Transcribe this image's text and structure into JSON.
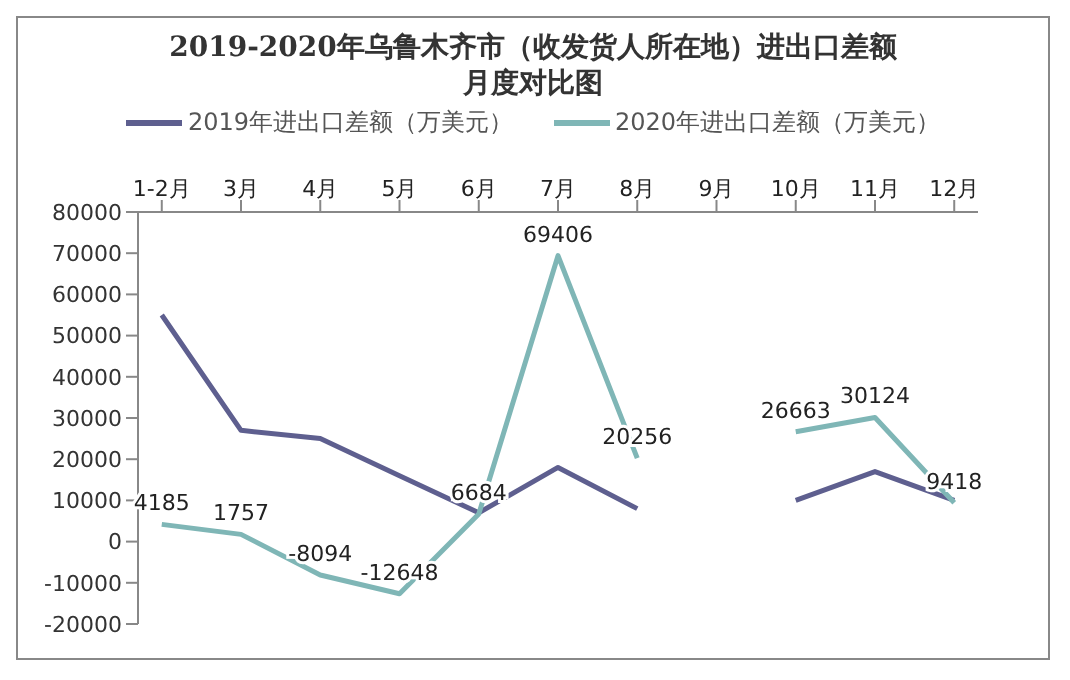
{
  "chart_data": {
    "type": "line",
    "title": "2019-2020年乌鲁木齐市（收发货人所在地）进出口差额月度对比图",
    "categories": [
      "1-2月",
      "3月",
      "4月",
      "5月",
      "6月",
      "7月",
      "8月",
      "9月",
      "10月",
      "11月",
      "12月"
    ],
    "series": [
      {
        "name": "2019年进出口差额（万美元）",
        "color": "#5e5f8f",
        "values": [
          55000,
          27000,
          25000,
          16000,
          7000,
          18000,
          8000,
          null,
          10000,
          17000,
          10000
        ]
      },
      {
        "name": "2020年进出口差额（万美元）",
        "color": "#7fb6b6",
        "values": [
          4185,
          1757,
          -8094,
          -12648,
          6684,
          69406,
          20256,
          null,
          26663,
          30124,
          9418
        ],
        "value_labels": [
          "4185",
          "1757",
          "-8094",
          "-12648",
          "6684",
          "69406",
          "20256",
          null,
          "26663",
          "30124",
          "9418"
        ]
      }
    ],
    "ylim": [
      -20000,
      80000
    ],
    "yticks": [
      -20000,
      -10000,
      0,
      10000,
      20000,
      30000,
      40000,
      50000,
      60000,
      70000,
      80000
    ],
    "grid": false,
    "legend": "top",
    "marker": "none",
    "line_style": "solid"
  }
}
